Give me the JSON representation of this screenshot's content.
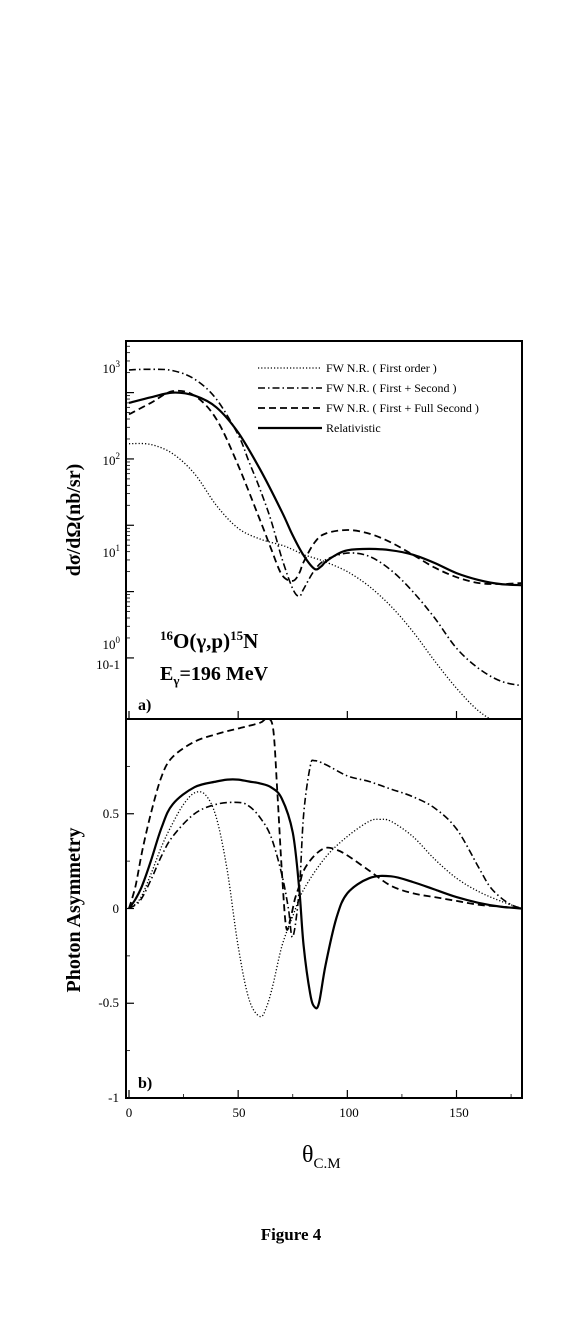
{
  "caption": "Figure 4",
  "chart_data": [
    {
      "type": "line",
      "panel_label": "a)",
      "ylabel": "dσ/dΩ(nb/sr)",
      "yscale": "log",
      "ylim": [
        0.012,
        6000
      ],
      "xlim": [
        0,
        180
      ],
      "y_ticks": [
        "10-1",
        "10",
        "10",
        "10",
        "10"
      ],
      "annotation": {
        "reaction": [
          "16",
          "O(",
          "γ",
          ",p)",
          "15",
          "N"
        ],
        "energy": [
          "E",
          "γ",
          "=196 MeV"
        ]
      },
      "legend_position": "top-right",
      "series": [
        {
          "name": "FW N.R. ( First order )",
          "dash": "dotted",
          "x": [
            0,
            10,
            20,
            30,
            40,
            50,
            60,
            70,
            75,
            80,
            85,
            90,
            100,
            110,
            120,
            130,
            140,
            150,
            160,
            170,
            180
          ],
          "y": [
            170,
            165,
            120,
            60,
            20,
            9,
            6.2,
            5,
            4.3,
            3.6,
            3.2,
            2.8,
            2.0,
            1.2,
            0.6,
            0.25,
            0.09,
            0.035,
            0.016,
            0.01,
            0.008
          ]
        },
        {
          "name": "FW N.R. ( First + Second )",
          "dash": "dashdot",
          "x": [
            0,
            10,
            20,
            30,
            40,
            50,
            55,
            60,
            65,
            70,
            75,
            78,
            80,
            85,
            90,
            100,
            110,
            120,
            130,
            140,
            150,
            160,
            170,
            180
          ],
          "y": [
            2200,
            2250,
            2150,
            1600,
            800,
            230,
            90,
            35,
            12,
            3.2,
            1.1,
            0.85,
            1.1,
            2.1,
            3.0,
            3.8,
            3.4,
            2.1,
            1.0,
            0.4,
            0.14,
            0.07,
            0.045,
            0.038
          ]
        },
        {
          "name": "FW N.R. ( First + Full Second )",
          "dash": "dashed",
          "x": [
            0,
            10,
            20,
            30,
            40,
            50,
            60,
            65,
            70,
            75,
            78,
            80,
            85,
            90,
            100,
            110,
            120,
            130,
            140,
            150,
            160,
            170,
            180
          ],
          "y": [
            470,
            700,
            1050,
            900,
            400,
            80,
            12,
            4.5,
            1.8,
            1.45,
            1.9,
            2.8,
            5.5,
            7.5,
            8.5,
            7.5,
            5.5,
            3.6,
            2.3,
            1.65,
            1.35,
            1.3,
            1.35
          ]
        },
        {
          "name": "Relativistic",
          "dash": "solid",
          "x": [
            0,
            10,
            20,
            30,
            40,
            50,
            60,
            70,
            75,
            80,
            85,
            88,
            90,
            95,
            100,
            110,
            120,
            130,
            140,
            150,
            160,
            170,
            180
          ],
          "y": [
            700,
            850,
            1000,
            900,
            600,
            250,
            70,
            16,
            7,
            3.5,
            2.2,
            2.4,
            2.8,
            3.6,
            4.2,
            4.4,
            4.2,
            3.6,
            2.7,
            1.9,
            1.5,
            1.3,
            1.25
          ]
        }
      ]
    },
    {
      "type": "line",
      "panel_label": "b)",
      "ylabel": "Photon Asymmetry",
      "xlabel": "θ",
      "xlabel_sub": "C.M",
      "xlim": [
        0,
        180
      ],
      "ylim": [
        -1,
        1
      ],
      "x_ticks": [
        "0",
        "50",
        "100",
        "150"
      ],
      "y_ticks": [
        "-1",
        "-0.5",
        "0",
        "0.5"
      ],
      "series": [
        {
          "name": "FW N.R. ( First order )",
          "dash": "dotted",
          "x": [
            0,
            5,
            10,
            15,
            20,
            25,
            30,
            35,
            40,
            45,
            50,
            55,
            60,
            63,
            66,
            70,
            75,
            80,
            90,
            100,
            110,
            115,
            120,
            130,
            140,
            150,
            160,
            170,
            180
          ],
          "y": [
            0,
            0.05,
            0.18,
            0.33,
            0.45,
            0.55,
            0.61,
            0.6,
            0.48,
            0.2,
            -0.2,
            -0.48,
            -0.57,
            -0.52,
            -0.4,
            -0.2,
            -0.04,
            0.1,
            0.27,
            0.38,
            0.46,
            0.47,
            0.46,
            0.38,
            0.26,
            0.16,
            0.09,
            0.04,
            0
          ]
        },
        {
          "name": "FW N.R. ( First + Second )",
          "dash": "dashdot",
          "x": [
            0,
            5,
            10,
            15,
            20,
            30,
            40,
            50,
            55,
            60,
            65,
            70,
            73,
            75,
            78,
            80,
            83,
            85,
            90,
            100,
            110,
            120,
            130,
            140,
            150,
            160,
            165,
            170,
            175,
            180
          ],
          "y": [
            0,
            0.04,
            0.15,
            0.28,
            0.38,
            0.5,
            0.55,
            0.56,
            0.54,
            0.48,
            0.38,
            0.18,
            0.0,
            -0.15,
            0.1,
            0.5,
            0.75,
            0.78,
            0.76,
            0.7,
            0.67,
            0.63,
            0.59,
            0.53,
            0.42,
            0.22,
            0.12,
            0.06,
            0.02,
            0
          ]
        },
        {
          "name": "FW N.R. ( First + Full Second )",
          "dash": "dashed",
          "x": [
            0,
            3,
            6,
            10,
            15,
            20,
            30,
            40,
            50,
            60,
            63,
            66,
            68,
            70,
            72,
            74,
            76,
            78,
            80,
            85,
            90,
            95,
            100,
            110,
            120,
            130,
            140,
            150,
            160,
            170,
            180
          ],
          "y": [
            0,
            0.12,
            0.3,
            0.5,
            0.7,
            0.8,
            0.88,
            0.92,
            0.95,
            0.98,
            1.0,
            0.95,
            0.6,
            0.2,
            -0.1,
            -0.05,
            0.05,
            0.12,
            0.2,
            0.28,
            0.32,
            0.31,
            0.28,
            0.2,
            0.12,
            0.08,
            0.06,
            0.04,
            0.02,
            0.01,
            0
          ]
        },
        {
          "name": "Relativistic",
          "dash": "solid",
          "x": [
            0,
            3,
            6,
            10,
            15,
            20,
            30,
            40,
            45,
            50,
            55,
            60,
            65,
            70,
            75,
            78,
            80,
            83,
            85,
            87,
            90,
            95,
            100,
            110,
            120,
            130,
            140,
            150,
            160,
            170,
            180
          ],
          "y": [
            0,
            0.05,
            0.12,
            0.25,
            0.43,
            0.55,
            0.64,
            0.67,
            0.68,
            0.68,
            0.67,
            0.66,
            0.64,
            0.58,
            0.4,
            0.1,
            -0.2,
            -0.45,
            -0.52,
            -0.5,
            -0.3,
            -0.05,
            0.08,
            0.16,
            0.17,
            0.14,
            0.1,
            0.06,
            0.03,
            0.01,
            0
          ]
        }
      ]
    }
  ]
}
